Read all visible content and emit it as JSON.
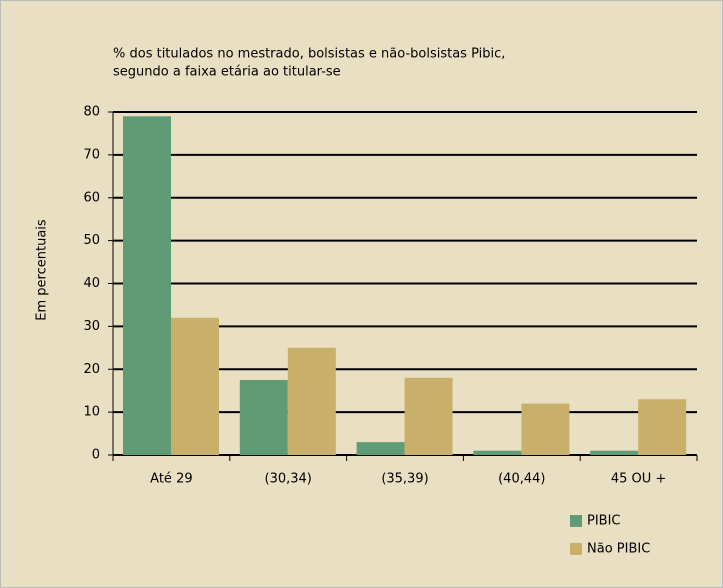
{
  "chart_data": {
    "type": "bar",
    "title": [
      "% dos titulados no mestrado, bolsistas e não-bolsistas Pibic,",
      "segundo a faixa etária ao titular-se"
    ],
    "y_label": "Em percentuais",
    "categories": [
      "Até 29",
      "(30,34)",
      "(35,39)",
      "(40,44)",
      "45 OU +"
    ],
    "series": [
      {
        "name": "PIBIC",
        "color": "#5f9b74",
        "values": [
          79,
          17.5,
          3,
          1,
          1
        ]
      },
      {
        "name": "Não PIBIC",
        "color": "#c8b06a",
        "values": [
          32,
          25,
          18,
          12,
          13
        ]
      }
    ],
    "ylim": [
      0,
      80
    ],
    "yticks": [
      0,
      10,
      20,
      30,
      40,
      50,
      60,
      70,
      80
    ],
    "grid": true,
    "legend": "lower right"
  }
}
